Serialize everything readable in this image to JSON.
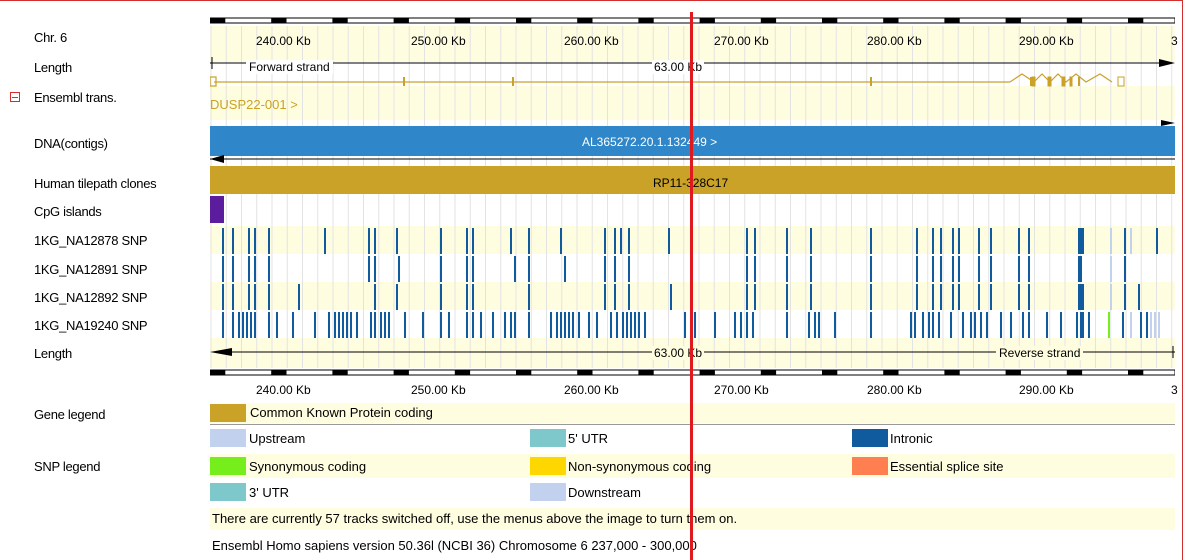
{
  "labels": {
    "chr": "Chr. 6",
    "length_top": "Length",
    "ensembl_trans": "Ensembl trans.",
    "dna_contigs": "DNA(contigs)",
    "tilepath": "Human tilepath clones",
    "cpg": "CpG islands",
    "snp1": "1KG_NA12878 SNP",
    "snp2": "1KG_NA12891 SNP",
    "snp3": "1KG_NA12892 SNP",
    "snp4": "1KG_NA19240 SNP",
    "length_bottom": "Length",
    "gene_legend": "Gene legend",
    "snp_legend": "SNP legend"
  },
  "ruler": {
    "ticks": [
      "240.00 Kb",
      "250.00 Kb",
      "260.00 Kb",
      "270.00 Kb",
      "280.00 Kb",
      "290.00 Kb",
      "3"
    ]
  },
  "tracks": {
    "forward_strand": "Forward strand",
    "reverse_strand": "Reverse strand",
    "length_value": "63.00 Kb",
    "transcript_name": "DUSP22-001 >",
    "contig_name": "AL365272.20.1.132449 >",
    "clone_name": "RP11-328C17"
  },
  "gene_legend": {
    "label": "Common Known Protein coding",
    "color": "#c9a227"
  },
  "snp_legend_items": [
    {
      "label": "Upstream",
      "color": "#c2d2ee"
    },
    {
      "label": "5' UTR",
      "color": "#7ec8cc"
    },
    {
      "label": "Intronic",
      "color": "#0f5b9e"
    },
    {
      "label": "Synonymous coding",
      "color": "#76ee1b"
    },
    {
      "label": "Non-synonymous coding",
      "color": "#ffd700"
    },
    {
      "label": "Essential splice site",
      "color": "#ff7f50"
    },
    {
      "label": "3' UTR",
      "color": "#7ec8cc"
    },
    {
      "label": "Downstream",
      "color": "#c2d2ee"
    }
  ],
  "messages": {
    "tracks_off": "There are currently 57 tracks switched off, use the menus above the image to turn them on.",
    "footer": "Ensembl Homo sapiens version 50.36l (NCBI 36) Chromosome 6 237,000 - 300,000"
  },
  "colors": {
    "stripe": "#fffde0",
    "transcript": "#c9a227",
    "contig": "#2f86c8",
    "clone": "#c9a227",
    "cpg": "#5b1c9e",
    "snp": "#0f5b9e",
    "marker": "#e0191f"
  }
}
